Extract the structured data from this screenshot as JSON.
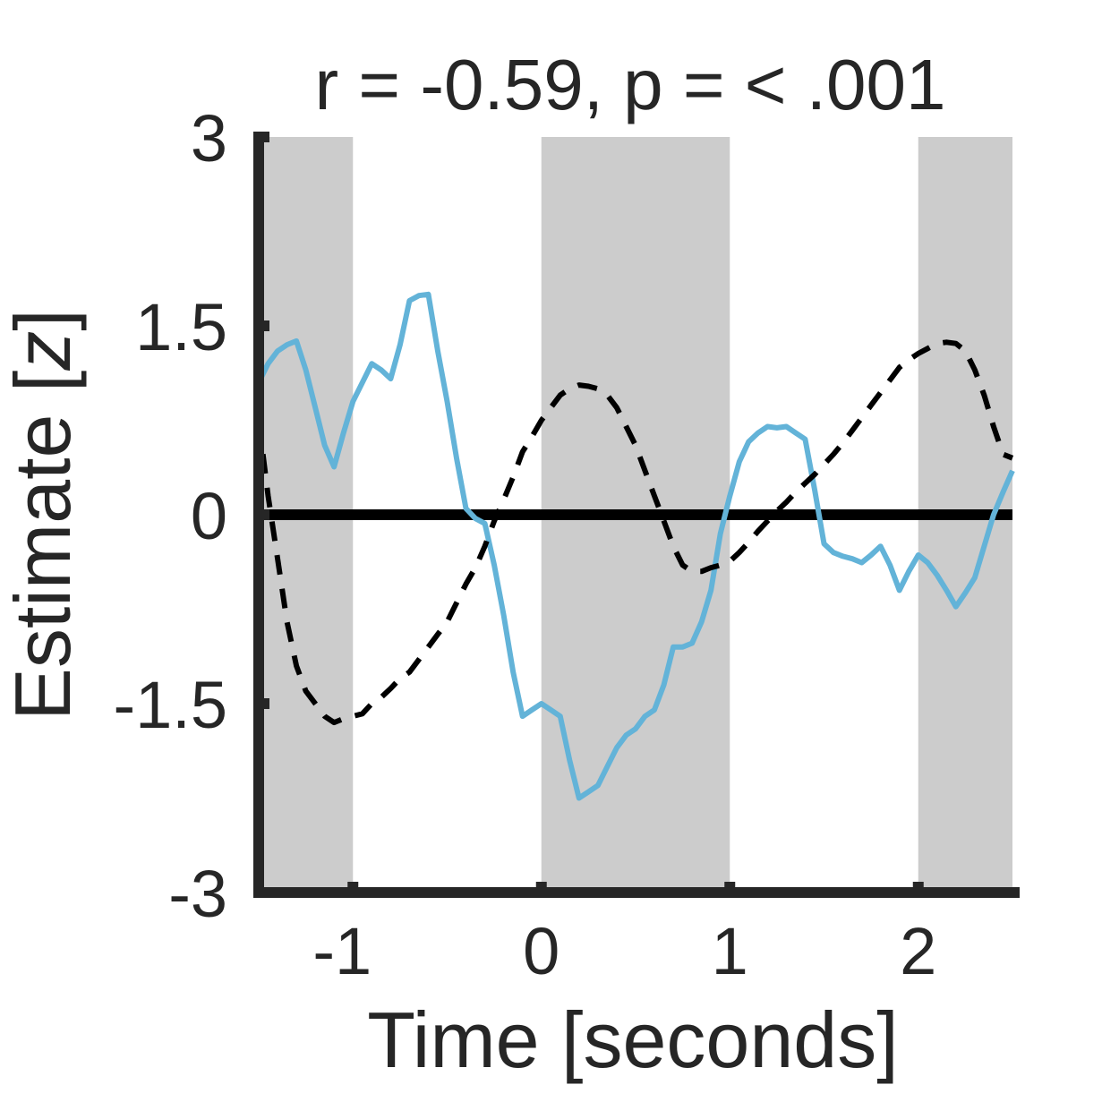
{
  "chart_data": {
    "type": "line",
    "title": "r = -0.59, p = < .001",
    "xlabel": "Time [seconds]",
    "ylabel_main": "Estimate [",
    "ylabel_var": "z",
    "ylabel_close": "]",
    "xlim": [
      -1.5,
      2.5
    ],
    "ylim": [
      -3,
      3
    ],
    "xticks": [
      -1,
      0,
      1,
      2
    ],
    "yticks": [
      -3,
      -1.5,
      0,
      1.5,
      3
    ],
    "xtick_labels": [
      "-1",
      "0",
      "1",
      "2"
    ],
    "ytick_labels": [
      "-3",
      "-1.5",
      "0",
      "1.5",
      "3"
    ],
    "grid": false,
    "legend": "none",
    "shaded_intervals": [
      [
        -1.5,
        -1.0
      ],
      [
        0.0,
        1.0
      ],
      [
        2.0,
        2.5
      ]
    ],
    "zero_line": 0,
    "colors": {
      "shade": "#cccccc",
      "solid_series": "#63b3d8",
      "dashed_series": "#000000",
      "axis": "#262626",
      "zero_line": "#000000"
    },
    "series": [
      {
        "style": "solid",
        "x": [
          -1.5,
          -1.45,
          -1.4,
          -1.35,
          -1.3,
          -1.25,
          -1.2,
          -1.15,
          -1.1,
          -1.05,
          -1.0,
          -0.95,
          -0.9,
          -0.85,
          -0.8,
          -0.75,
          -0.7,
          -0.65,
          -0.6,
          -0.55,
          -0.5,
          -0.45,
          -0.4,
          -0.35,
          -0.3,
          -0.25,
          -0.2,
          -0.15,
          -0.1,
          -0.05,
          0.0,
          0.05,
          0.1,
          0.15,
          0.2,
          0.25,
          0.3,
          0.35,
          0.4,
          0.45,
          0.5,
          0.55,
          0.6,
          0.65,
          0.7,
          0.75,
          0.8,
          0.85,
          0.9,
          0.95,
          1.0,
          1.05,
          1.1,
          1.15,
          1.2,
          1.25,
          1.3,
          1.35,
          1.4,
          1.45,
          1.5,
          1.55,
          1.6,
          1.65,
          1.7,
          1.75,
          1.8,
          1.85,
          1.9,
          1.95,
          2.0,
          2.05,
          2.1,
          2.15,
          2.2,
          2.25,
          2.3,
          2.35,
          2.4,
          2.45,
          2.5
        ],
        "y": [
          1.05,
          1.2,
          1.3,
          1.35,
          1.38,
          1.15,
          0.85,
          0.55,
          0.38,
          0.65,
          0.9,
          1.05,
          1.2,
          1.15,
          1.08,
          1.35,
          1.7,
          1.74,
          1.75,
          1.3,
          0.9,
          0.45,
          0.05,
          -0.03,
          -0.07,
          -0.4,
          -0.8,
          -1.25,
          -1.6,
          -1.55,
          -1.5,
          -1.55,
          -1.6,
          -1.95,
          -2.25,
          -2.2,
          -2.15,
          -2.0,
          -1.85,
          -1.75,
          -1.7,
          -1.6,
          -1.55,
          -1.35,
          -1.05,
          -1.05,
          -1.02,
          -0.85,
          -0.6,
          -0.15,
          0.15,
          0.42,
          0.58,
          0.65,
          0.7,
          0.69,
          0.7,
          0.65,
          0.6,
          0.2,
          -0.23,
          -0.3,
          -0.33,
          -0.35,
          -0.38,
          -0.32,
          -0.25,
          -0.4,
          -0.6,
          -0.45,
          -0.32,
          -0.38,
          -0.48,
          -0.6,
          -0.73,
          -0.62,
          -0.5,
          -0.25,
          0.0,
          0.18,
          0.35
        ]
      },
      {
        "style": "dashed",
        "x": [
          -1.5,
          -1.45,
          -1.4,
          -1.35,
          -1.3,
          -1.25,
          -1.2,
          -1.15,
          -1.1,
          -1.05,
          -1.0,
          -0.95,
          -0.9,
          -0.85,
          -0.8,
          -0.75,
          -0.7,
          -0.65,
          -0.6,
          -0.55,
          -0.5,
          -0.45,
          -0.4,
          -0.35,
          -0.3,
          -0.25,
          -0.2,
          -0.15,
          -0.1,
          -0.05,
          0.0,
          0.05,
          0.1,
          0.15,
          0.2,
          0.25,
          0.3,
          0.35,
          0.4,
          0.45,
          0.5,
          0.55,
          0.6,
          0.65,
          0.7,
          0.75,
          0.8,
          0.85,
          0.9,
          0.95,
          1.0,
          1.05,
          1.1,
          1.15,
          1.2,
          1.25,
          1.3,
          1.35,
          1.4,
          1.45,
          1.5,
          1.55,
          1.6,
          1.65,
          1.7,
          1.75,
          1.8,
          1.85,
          1.9,
          1.95,
          2.0,
          2.05,
          2.1,
          2.15,
          2.2,
          2.25,
          2.3,
          2.35,
          2.4,
          2.45,
          2.5
        ],
        "y": [
          0.75,
          0.15,
          -0.35,
          -0.85,
          -1.2,
          -1.4,
          -1.5,
          -1.6,
          -1.65,
          -1.62,
          -1.6,
          -1.58,
          -1.5,
          -1.45,
          -1.38,
          -1.3,
          -1.25,
          -1.15,
          -1.05,
          -0.95,
          -0.85,
          -0.7,
          -0.55,
          -0.42,
          -0.25,
          -0.05,
          0.12,
          0.3,
          0.5,
          0.62,
          0.75,
          0.85,
          0.95,
          1.0,
          1.03,
          1.02,
          1.0,
          0.95,
          0.85,
          0.7,
          0.55,
          0.35,
          0.15,
          -0.05,
          -0.25,
          -0.4,
          -0.45,
          -0.45,
          -0.42,
          -0.4,
          -0.37,
          -0.3,
          -0.22,
          -0.13,
          -0.05,
          0.03,
          0.1,
          0.18,
          0.25,
          0.32,
          0.4,
          0.48,
          0.57,
          0.67,
          0.77,
          0.87,
          0.97,
          1.07,
          1.17,
          1.23,
          1.28,
          1.32,
          1.36,
          1.37,
          1.36,
          1.3,
          1.15,
          0.95,
          0.7,
          0.48,
          0.45
        ]
      }
    ]
  }
}
